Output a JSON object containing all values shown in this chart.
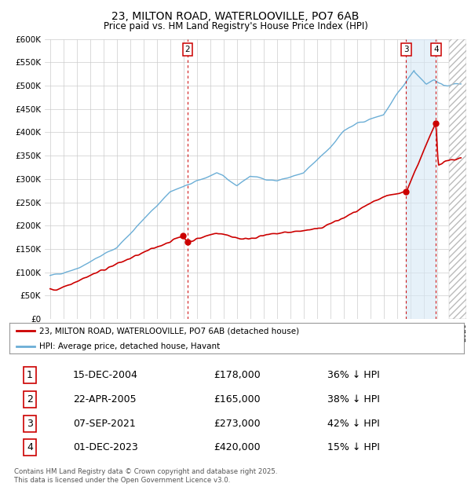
{
  "title": "23, MILTON ROAD, WATERLOOVILLE, PO7 6AB",
  "subtitle": "Price paid vs. HM Land Registry's House Price Index (HPI)",
  "ylim": [
    0,
    600000
  ],
  "yticks": [
    0,
    50000,
    100000,
    150000,
    200000,
    250000,
    300000,
    350000,
    400000,
    450000,
    500000,
    550000,
    600000
  ],
  "ytick_labels": [
    "£0",
    "£50K",
    "£100K",
    "£150K",
    "£200K",
    "£250K",
    "£300K",
    "£350K",
    "£400K",
    "£450K",
    "£500K",
    "£550K",
    "£600K"
  ],
  "hpi_color": "#6baed6",
  "price_color": "#cc0000",
  "dashed_color": "#cc0000",
  "background_color": "#ffffff",
  "grid_color": "#cccccc",
  "xlim_left": 1994.6,
  "xlim_right": 2026.2,
  "transactions": [
    {
      "num": 1,
      "date": "15-DEC-2004",
      "price": 178000,
      "pct": "36%",
      "x_year": 2004.96,
      "show_on_chart": false
    },
    {
      "num": 2,
      "date": "22-APR-2005",
      "price": 165000,
      "pct": "38%",
      "x_year": 2005.31,
      "show_on_chart": true
    },
    {
      "num": 3,
      "date": "07-SEP-2021",
      "price": 273000,
      "pct": "42%",
      "x_year": 2021.69,
      "show_on_chart": true
    },
    {
      "num": 4,
      "date": "01-DEC-2023",
      "price": 420000,
      "pct": "15%",
      "x_year": 2023.92,
      "show_on_chart": true
    }
  ],
  "legend_label_price": "23, MILTON ROAD, WATERLOOVILLE, PO7 6AB (detached house)",
  "legend_label_hpi": "HPI: Average price, detached house, Havant",
  "footer": "Contains HM Land Registry data © Crown copyright and database right 2025.\nThis data is licensed under the Open Government Licence v3.0.",
  "table_rows": [
    [
      "1",
      "15-DEC-2004",
      "£178,000",
      "36% ↓ HPI"
    ],
    [
      "2",
      "22-APR-2005",
      "£165,000",
      "38% ↓ HPI"
    ],
    [
      "3",
      "07-SEP-2021",
      "£273,000",
      "42% ↓ HPI"
    ],
    [
      "4",
      "01-DEC-2023",
      "£420,000",
      "15% ↓ HPI"
    ]
  ],
  "highlight_span": [
    2021.69,
    2023.92
  ],
  "hatch_start": 2024.9
}
